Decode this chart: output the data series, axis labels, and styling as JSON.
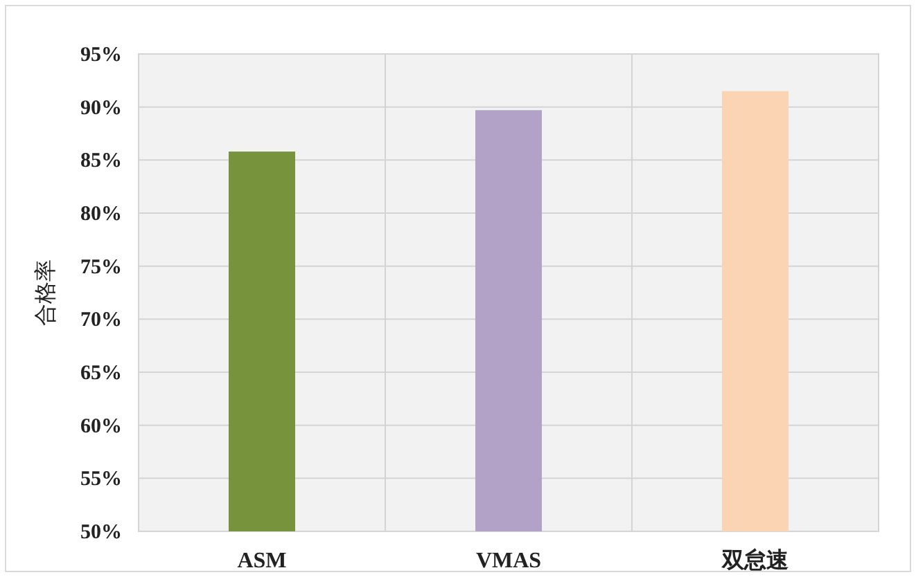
{
  "chart_data": {
    "type": "bar",
    "ylabel": "合格率",
    "categories": [
      "ASM",
      "VMAS",
      "双怠速"
    ],
    "values": [
      85.8,
      89.7,
      91.5
    ],
    "colors": [
      "#77933c",
      "#b3a2c7",
      "#fbd4b4"
    ],
    "ylim": [
      50,
      95
    ],
    "yticks": [
      {
        "value": 50,
        "label": "50%"
      },
      {
        "value": 55,
        "label": "55%"
      },
      {
        "value": 60,
        "label": "60%"
      },
      {
        "value": 65,
        "label": "65%"
      },
      {
        "value": 70,
        "label": "70%"
      },
      {
        "value": 75,
        "label": "75%"
      },
      {
        "value": 80,
        "label": "80%"
      },
      {
        "value": 85,
        "label": "85%"
      },
      {
        "value": 90,
        "label": "90%"
      },
      {
        "value": 95,
        "label": "95%"
      }
    ],
    "grid": true
  }
}
